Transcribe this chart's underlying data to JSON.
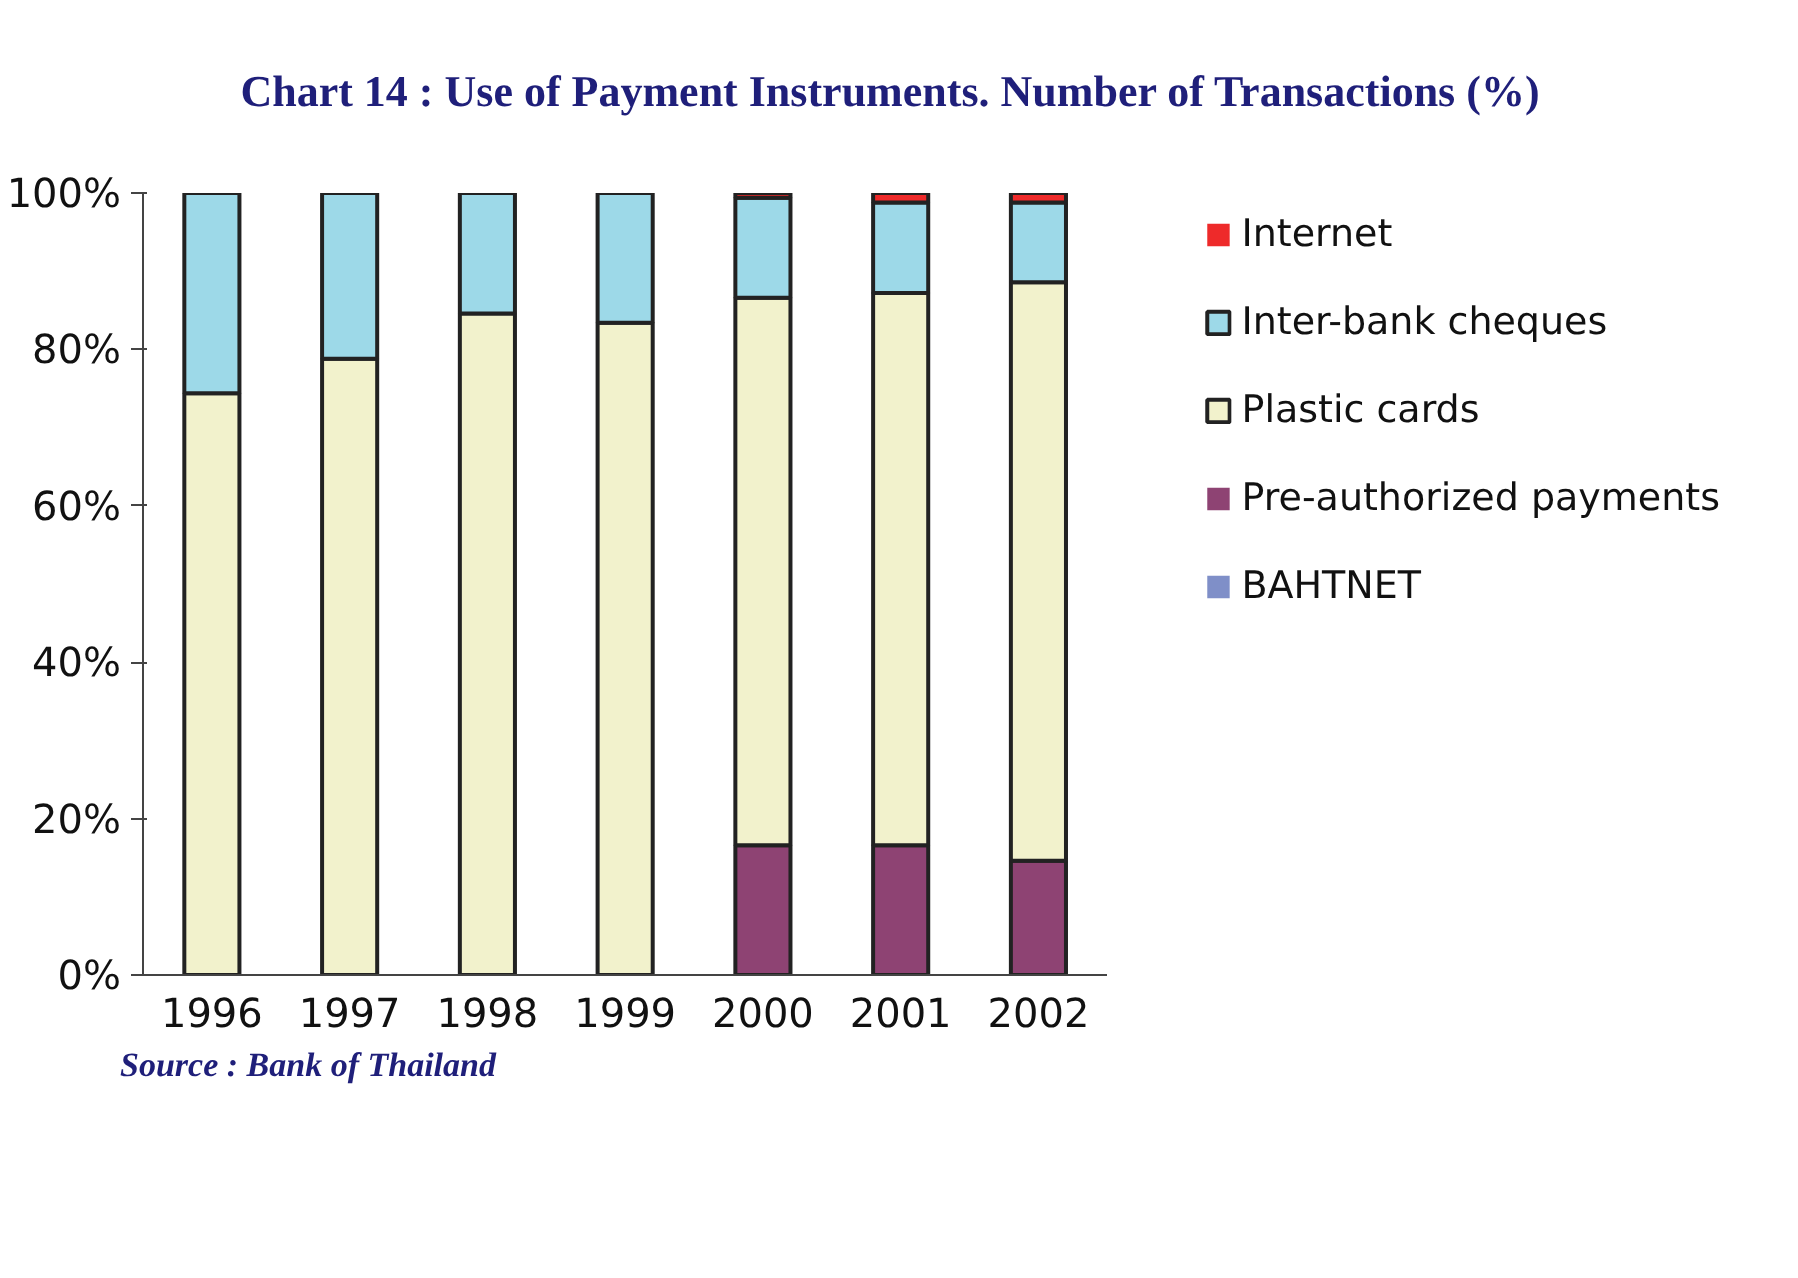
{
  "chart_data": {
    "type": "bar",
    "stacked": true,
    "title": "Chart 14 : Use of Payment Instruments.  Number of Transactions (%)",
    "categories": [
      "1996",
      "1997",
      "1998",
      "1999",
      "2000",
      "2001",
      "2002"
    ],
    "series": [
      {
        "name": "BAHTNET",
        "color": "#7f8fc8",
        "values": [
          0,
          0,
          0,
          0,
          0,
          0,
          0
        ]
      },
      {
        "name": "Pre-authorized payments",
        "color": "#8e4373",
        "values": [
          0,
          0,
          null,
          null,
          16.6,
          16.6,
          14.6
        ]
      },
      {
        "name": "Plastic cards",
        "color": "#f2f2cc",
        "values": [
          74.4,
          78.8,
          84.6,
          83.4,
          70.0,
          70.6,
          74.0
        ]
      },
      {
        "name": "Inter-bank cheques",
        "color": "#9dd9e8",
        "values": [
          25.6,
          21.2,
          15.4,
          16.6,
          12.8,
          11.6,
          10.2
        ]
      },
      {
        "name": "Internet",
        "color": "#ee2a2a",
        "values": [
          0,
          0,
          0,
          0,
          0.6,
          1.2,
          1.2
        ]
      }
    ],
    "ylim": [
      0,
      100
    ],
    "yticks": [
      {
        "value": 0,
        "label": "0%"
      },
      {
        "value": 20,
        "label": "20%"
      },
      {
        "value": 40,
        "label": "40%"
      },
      {
        "value": 60,
        "label": "60%"
      },
      {
        "value": 80,
        "label": "80%"
      },
      {
        "value": 100,
        "label": "100%"
      }
    ],
    "grid": false,
    "legend": "right",
    "annotations": [
      "Source : Bank of Thailand"
    ]
  }
}
